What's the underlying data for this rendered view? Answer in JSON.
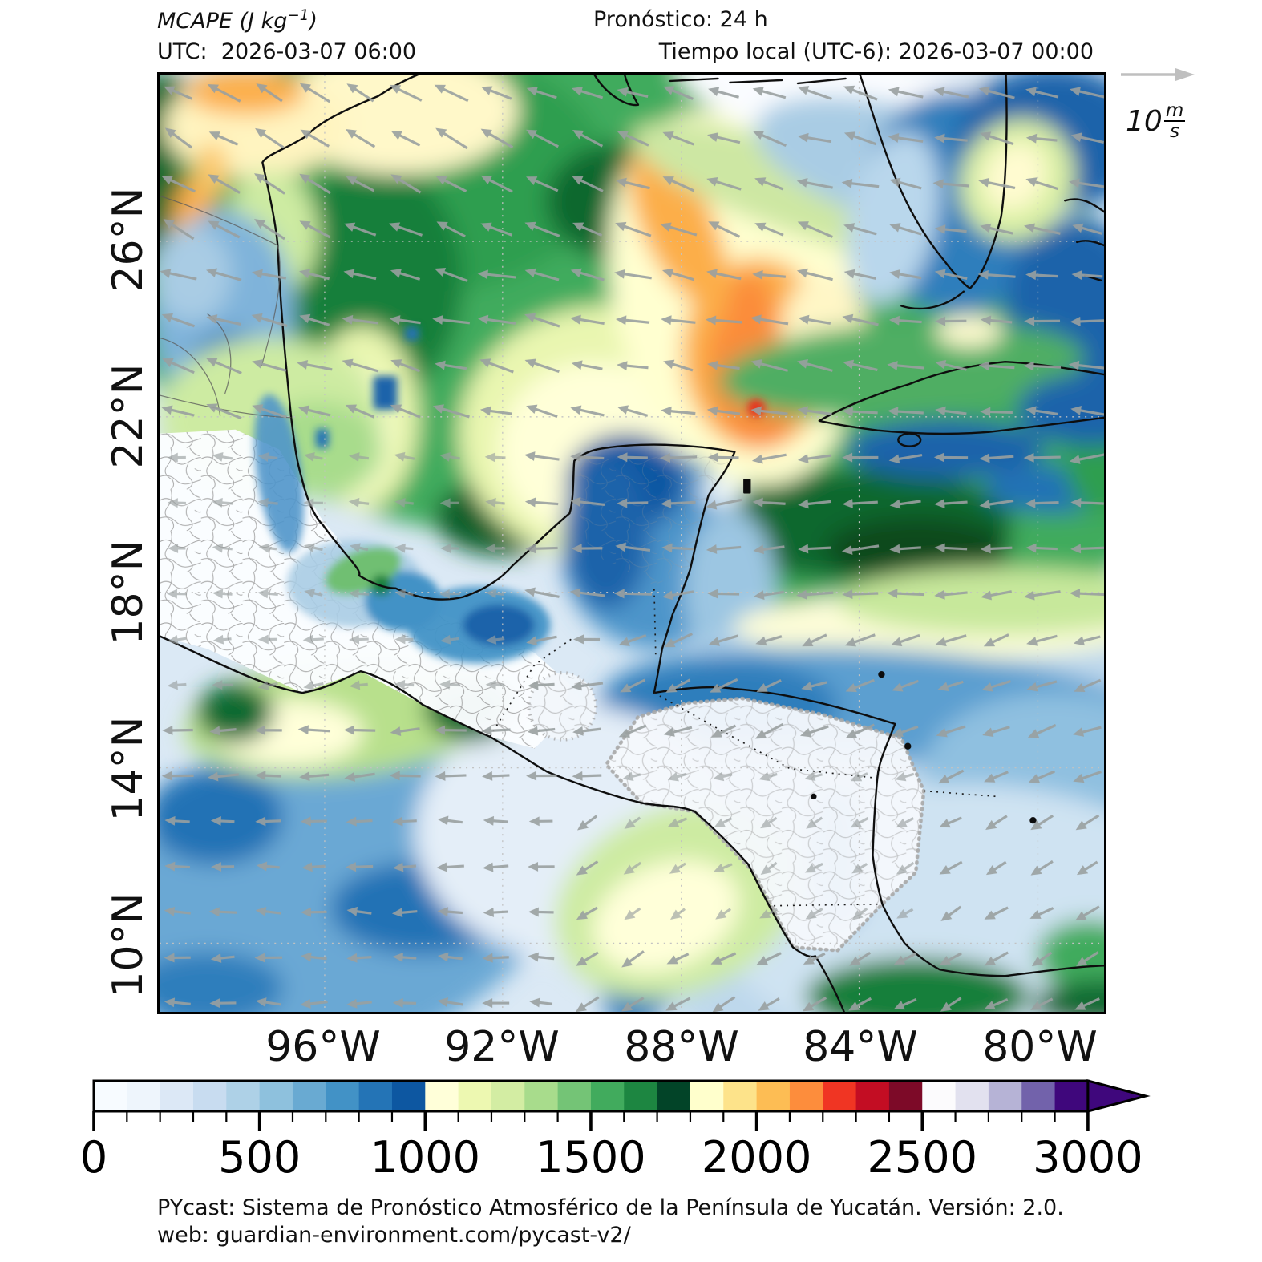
{
  "header": {
    "variable": "MCAPE",
    "units_prefix": " (J kg",
    "units_exponent": "−1",
    "units_suffix": ")",
    "forecast": "Pronóstico: 24 h",
    "utc": "UTC:  2026-03-07 06:00",
    "local": "Tiempo local (UTC-6): 2026-03-07 00:00"
  },
  "wind_legend": {
    "value": "10",
    "numerator": "m",
    "denominator": "s"
  },
  "axes": {
    "lat_ticks": [
      "26°N",
      "22°N",
      "18°N",
      "14°N",
      "10°N"
    ],
    "lon_ticks": [
      "96°W",
      "92°W",
      "88°W",
      "84°W",
      "80°W"
    ]
  },
  "colorbar": {
    "tick_labels": [
      "0",
      "500",
      "1000",
      "1500",
      "2000",
      "2500",
      "3000"
    ],
    "colors": [
      "#f7fbff",
      "#eef5fc",
      "#dce8f6",
      "#c8dcf0",
      "#aed1e7",
      "#8ec1dd",
      "#69aad2",
      "#4292c6",
      "#2474b6",
      "#0d57a1",
      "#ffffd9",
      "#edf8b1",
      "#d3eda3",
      "#a8dc8c",
      "#74c476",
      "#41ab5d",
      "#1d8641",
      "#024428",
      "#ffffcc",
      "#fde38a",
      "#fdbd54",
      "#fd8d3c",
      "#f03523",
      "#c30d23",
      "#7d0a28",
      "#fcfbfd",
      "#e2e1ef",
      "#b6b3d6",
      "#7262ab",
      "#3f077c"
    ],
    "extend_color": "#3f077c"
  },
  "footer": {
    "line1": "PYcast: Sistema de Pronóstico Atmosférico de la Península de Yucatán. Versión: 2.0.",
    "line2": "web: guardian-environment.com/pycast-v2/"
  },
  "chart_data": {
    "type": "heatmap",
    "title": "MCAPE (J kg⁻¹)",
    "forecast_lead": "Pronóstico: 24 h",
    "valid_time_utc": "2026-03-07 06:00",
    "valid_time_local_utc_minus_6": "2026-03-07 00:00",
    "x_tick_labels": [
      "96°W",
      "92°W",
      "88°W",
      "84°W",
      "80°W"
    ],
    "y_tick_labels": [
      "26°N",
      "22°N",
      "18°N",
      "14°N",
      "10°N"
    ],
    "lon_range_deg_west": [
      99.7,
      78.5
    ],
    "lat_range_deg_north": [
      8.5,
      29.8
    ],
    "grid": "dashed graticule every 4 degrees",
    "colorbar": {
      "units": "J kg⁻¹",
      "min": 0,
      "max": 3000,
      "major_tick_step": 500,
      "segment_step": 100,
      "extend": "max (arrow above 3000)",
      "palette_groups": [
        "0–1000 blues",
        "1000–1800 yellow-greens",
        "1800–2500 yellow-orange-red",
        "2500–3000 white-purple"
      ]
    },
    "wind_reference_m_s": 10,
    "wind_field": "easterly flow 5–10 m/s; arrows point W over Gulf of Mexico (veering WNW near Texas) and WSW over the Caribbean and eastern Pacific",
    "field_summary": [
      {
        "region": "Gulf of Mexico, central and northern",
        "approx_mcape_j_kg": "1200–1800"
      },
      {
        "region": "Eastern Gulf band near 85–88°W, 22–27°N",
        "approx_mcape_j_kg": "1900–2400, local max ~2300"
      },
      {
        "region": "Texas coastal plain (top-left corner)",
        "approx_mcape_j_kg": "1800–2100"
      },
      {
        "region": "West-central Gulf off Tampico",
        "approx_mcape_j_kg": "1000–1200 with small 800–1000 pockets"
      },
      {
        "region": "Florida peninsula and NW Bahamas waters",
        "approx_mcape_j_kg": "300–900"
      },
      {
        "region": "Yucatán Peninsula",
        "approx_mcape_j_kg": "400–1000"
      },
      {
        "region": "South of Cuba / NW Caribbean",
        "approx_mcape_j_kg": "1300–1800"
      },
      {
        "region": "Caribbean off Honduras/Nicaragua",
        "approx_mcape_j_kg": "300–800"
      },
      {
        "region": "Central Mexico interior",
        "approx_mcape_j_kg": "0–200"
      },
      {
        "region": "Honduras/Nicaragua interior",
        "approx_mcape_j_kg": "0–300"
      },
      {
        "region": "Eastern Pacific south of Tehuantepec",
        "approx_mcape_j_kg": "400–1500 with green patches 1000–1500"
      }
    ]
  }
}
